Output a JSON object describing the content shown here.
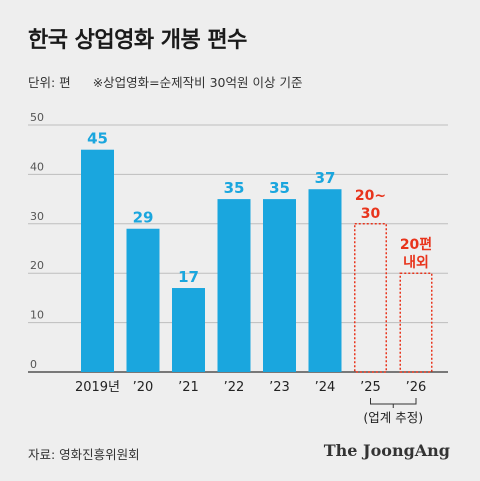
{
  "title": "한국 상업영화 개봉 편수",
  "unit_label": "단위: 편",
  "note": "※상업영화=순제작비 30억원 이상 기준",
  "source": "자료: 영화진흥위원회",
  "brand": "The JoongAng",
  "colors": {
    "actual": "#1aa6de",
    "estimate": "#e8341c",
    "grid": "#bdbdbd",
    "text": "#222222"
  },
  "chart_data": {
    "type": "bar",
    "categories": [
      "2019년",
      "’20",
      "’21",
      "’22",
      "’23",
      "’24",
      "’25",
      "’26"
    ],
    "values": [
      45,
      29,
      17,
      35,
      35,
      37,
      30,
      20
    ],
    "value_labels": [
      "45",
      "29",
      "17",
      "35",
      "35",
      "37",
      "20~\n30",
      "20편\n내외"
    ],
    "estimated": [
      false,
      false,
      false,
      false,
      false,
      false,
      true,
      true
    ],
    "estimate_label": "(업계 추정)",
    "yticks": [
      0,
      10,
      20,
      30,
      40,
      50
    ],
    "ylim": [
      0,
      50
    ],
    "grid": true,
    "xlabel": "",
    "ylabel": ""
  }
}
